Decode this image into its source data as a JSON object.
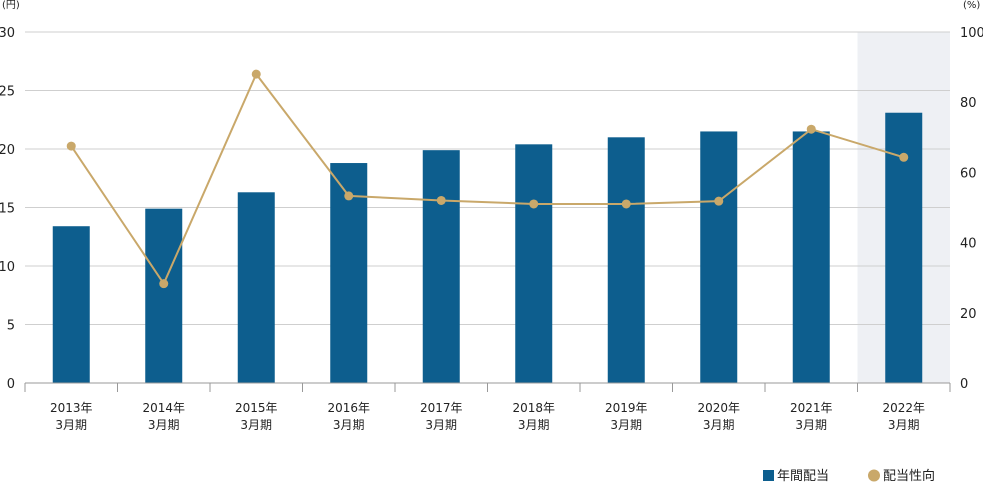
{
  "chart_data": {
    "type": "bar",
    "y_left_unit": "(円)",
    "y_right_unit": "(%)",
    "categories": [
      [
        "2013年",
        "3月期"
      ],
      [
        "2014年",
        "3月期"
      ],
      [
        "2015年",
        "3月期"
      ],
      [
        "2016年",
        "3月期"
      ],
      [
        "2017年",
        "3月期"
      ],
      [
        "2018年",
        "3月期"
      ],
      [
        "2019年",
        "3月期"
      ],
      [
        "2020年",
        "3月期"
      ],
      [
        "2021年",
        "3月期"
      ],
      [
        "2022年",
        "3月期"
      ]
    ],
    "y_left_ticks": [
      "0",
      "5",
      "10",
      "15",
      "20",
      "25",
      "30"
    ],
    "y_right_ticks": [
      "0",
      "20",
      "40",
      "60",
      "80",
      "100"
    ],
    "ylim_left": [
      0,
      30
    ],
    "ylim_right": [
      0,
      100
    ],
    "highlight_category_index": 9,
    "grid": true,
    "legend_position": "bottom-right",
    "series": [
      {
        "name": "年間配当",
        "type": "bar",
        "axis": "left",
        "color": "#0d5e8e",
        "values": [
          13.4,
          14.9,
          16.3,
          18.8,
          19.9,
          20.4,
          21.0,
          21.5,
          21.5,
          23.1
        ]
      },
      {
        "name": "配当性向",
        "type": "line",
        "axis": "right",
        "color": "#c9a86a",
        "values": [
          67.5,
          28.3,
          88.0,
          53.3,
          52.0,
          51.0,
          51.0,
          51.8,
          72.3,
          64.3
        ]
      }
    ]
  }
}
